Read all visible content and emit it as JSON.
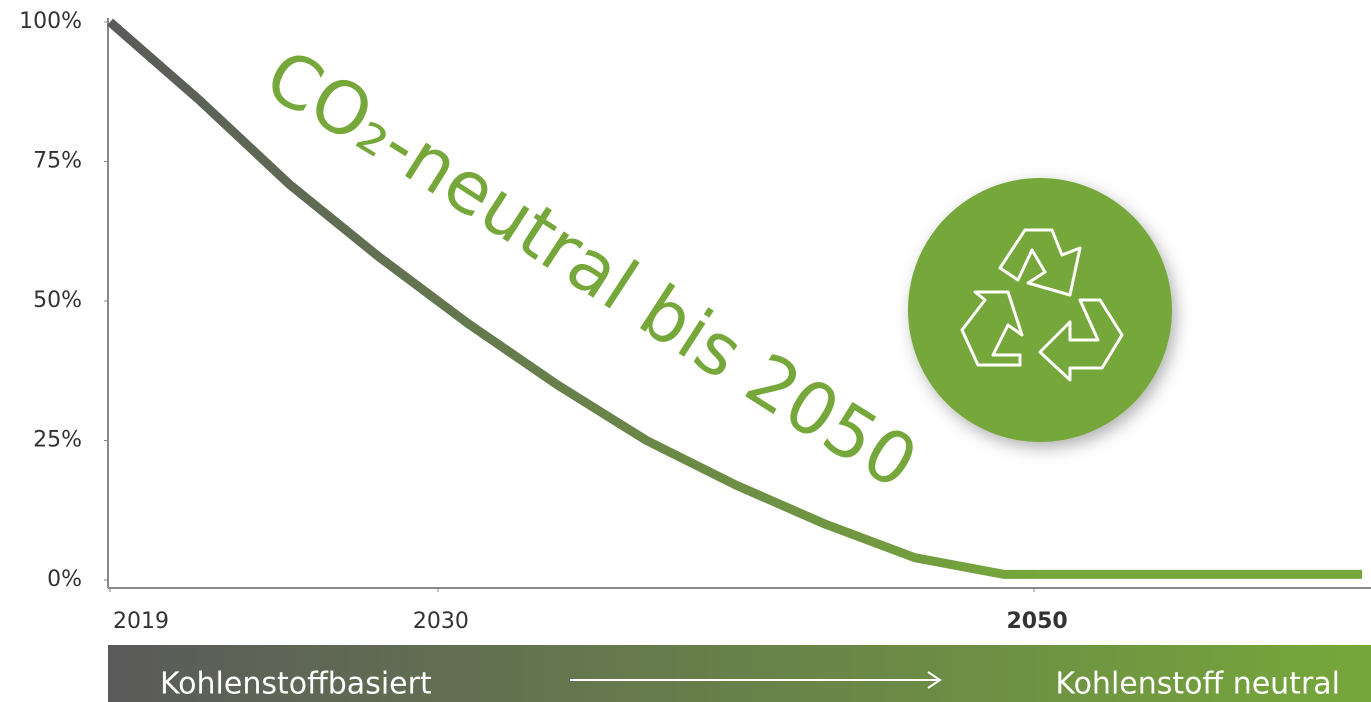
{
  "chart_data": {
    "type": "line",
    "annotation": "CO₂-neutral bis 2050",
    "x": [
      2019,
      2022,
      2025,
      2028,
      2031,
      2034,
      2037,
      2040,
      2043,
      2046,
      2049,
      2050,
      2061
    ],
    "series": [
      {
        "color": "#76a73a",
        "values": [
          100,
          86,
          71,
          58,
          46,
          35,
          25,
          17,
          10,
          4,
          1,
          1,
          1
        ]
      }
    ],
    "line_gradient_start": "#5a5a5a",
    "xlim": [
      2019,
      2061
    ],
    "xticks": [
      2019,
      2030,
      2050
    ],
    "ylim": [
      0,
      100
    ],
    "yticks": [
      {
        "value": 0,
        "label": "0%"
      },
      {
        "value": 25,
        "label": "25%"
      },
      {
        "value": 50,
        "label": "50%"
      },
      {
        "value": 75,
        "label": "75%"
      },
      {
        "value": 100,
        "label": "100%"
      }
    ],
    "bottom_bar": {
      "left": "Kohlenstoffbasiert",
      "right": "Kohlenstoff neutral"
    }
  }
}
